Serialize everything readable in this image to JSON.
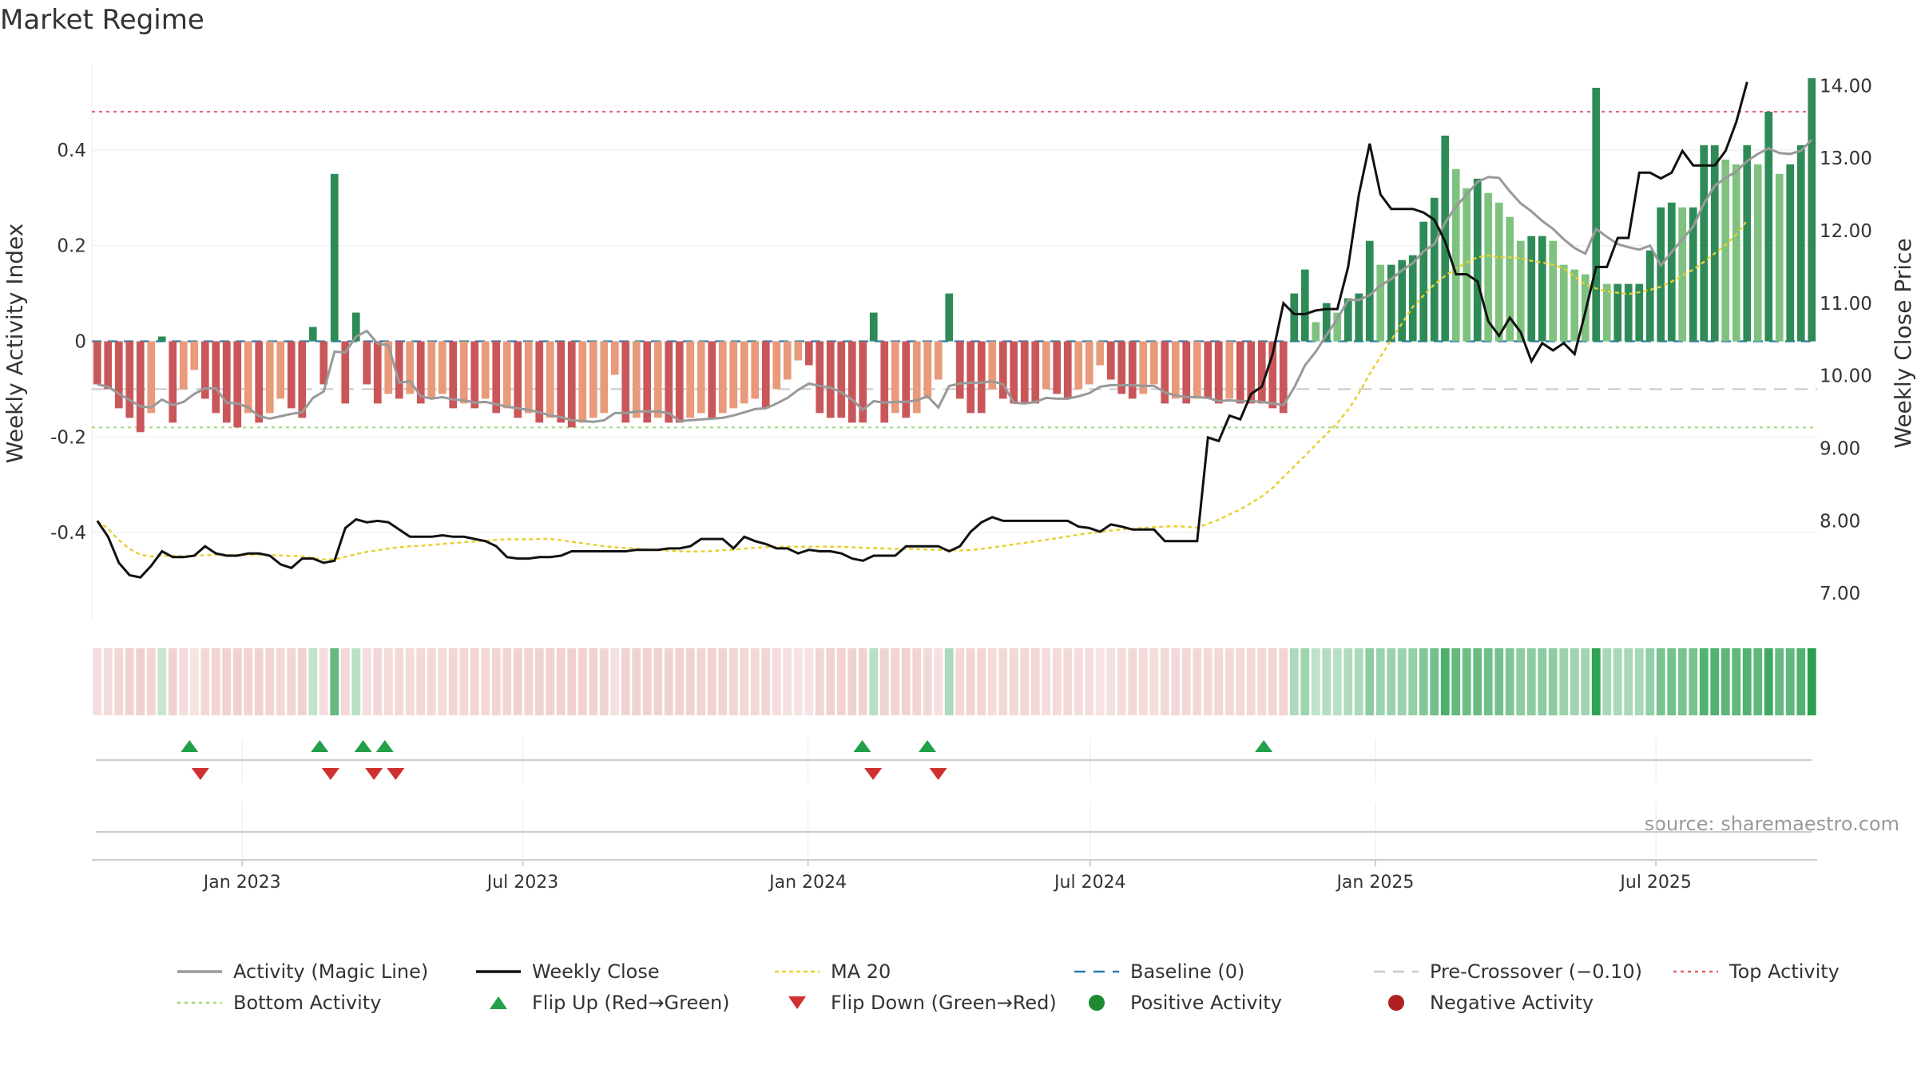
{
  "chart_data": {
    "type": "bar",
    "title": "Market Regime",
    "ylabel": "Weekly Activity Index",
    "y2label": "Weekly Close Price",
    "ylim": [
      -0.58,
      0.58
    ],
    "y2lim": [
      6.65,
      14.3
    ],
    "x_start": "2022-09-26",
    "x_end": "2025-10-13",
    "yticks": [
      {
        "v": 0.4,
        "label": "0.4"
      },
      {
        "v": 0.2,
        "label": "0.2"
      },
      {
        "v": 0,
        "label": "0"
      },
      {
        "v": -0.2,
        "label": "-0.2"
      },
      {
        "v": -0.4,
        "label": "-0.4"
      }
    ],
    "y2ticks": [
      {
        "v": 14,
        "label": "14.00"
      },
      {
        "v": 13,
        "label": "13.00"
      },
      {
        "v": 12,
        "label": "12.00"
      },
      {
        "v": 11,
        "label": "11.00"
      },
      {
        "v": 10,
        "label": "10.00"
      },
      {
        "v": 9,
        "label": "9.00"
      },
      {
        "v": 8,
        "label": "8.00"
      },
      {
        "v": 7,
        "label": "7.00"
      }
    ],
    "xticks": [
      {
        "date": "2023-01-01",
        "label": "Jan 2023"
      },
      {
        "date": "2023-07-01",
        "label": "Jul 2023"
      },
      {
        "date": "2024-01-01",
        "label": "Jan 2024"
      },
      {
        "date": "2024-07-01",
        "label": "Jul 2024"
      },
      {
        "date": "2025-01-01",
        "label": "Jan 2025"
      },
      {
        "date": "2025-07-01",
        "label": "Jul 2025"
      }
    ],
    "reference_lines": {
      "top": 0.48,
      "pre_crossover": -0.1,
      "bottom": -0.18
    },
    "activity": [
      -0.09,
      -0.1,
      -0.14,
      -0.16,
      -0.19,
      -0.15,
      0.01,
      -0.17,
      -0.1,
      -0.06,
      -0.12,
      -0.15,
      -0.17,
      -0.18,
      -0.15,
      -0.17,
      -0.15,
      -0.12,
      -0.14,
      -0.16,
      0.03,
      -0.09,
      0.35,
      -0.13,
      0.06,
      -0.09,
      -0.13,
      -0.11,
      -0.12,
      -0.11,
      -0.13,
      -0.12,
      -0.11,
      -0.14,
      -0.13,
      -0.14,
      -0.12,
      -0.15,
      -0.14,
      -0.16,
      -0.15,
      -0.17,
      -0.16,
      -0.17,
      -0.18,
      -0.17,
      -0.16,
      -0.15,
      -0.07,
      -0.17,
      -0.16,
      -0.17,
      -0.16,
      -0.17,
      -0.17,
      -0.16,
      -0.15,
      -0.16,
      -0.15,
      -0.14,
      -0.13,
      -0.12,
      -0.14,
      -0.1,
      -0.08,
      -0.04,
      -0.05,
      -0.15,
      -0.16,
      -0.16,
      -0.17,
      -0.17,
      0.06,
      -0.17,
      -0.15,
      -0.16,
      -0.15,
      -0.12,
      -0.08,
      0.1,
      -0.12,
      -0.15,
      -0.15,
      -0.1,
      -0.12,
      -0.13,
      -0.13,
      -0.13,
      -0.1,
      -0.11,
      -0.12,
      -0.1,
      -0.09,
      -0.05,
      -0.08,
      -0.11,
      -0.12,
      -0.11,
      -0.09,
      -0.13,
      -0.12,
      -0.13,
      -0.12,
      -0.12,
      -0.13,
      -0.12,
      -0.13,
      -0.13,
      -0.13,
      -0.14,
      -0.15,
      0.1,
      0.15,
      0.04,
      0.08,
      0.06,
      0.09,
      0.1,
      0.21,
      0.16,
      0.16,
      0.17,
      0.18,
      0.25,
      0.3,
      0.43,
      0.36,
      0.32,
      0.34,
      0.31,
      0.29,
      0.26,
      0.21,
      0.22,
      0.22,
      0.21,
      0.16,
      0.15,
      0.14,
      0.53,
      0.12,
      0.12,
      0.12,
      0.12,
      0.19,
      0.28,
      0.29,
      0.28,
      0.28,
      0.41,
      0.41,
      0.38,
      0.37,
      0.41,
      0.37,
      0.48,
      0.35,
      0.37,
      0.41,
      0.55
    ],
    "close": [
      8.0,
      7.78,
      7.42,
      7.25,
      7.22,
      7.38,
      7.58,
      7.5,
      7.5,
      7.52,
      7.65,
      7.55,
      7.52,
      7.52,
      7.55,
      7.55,
      7.52,
      7.4,
      7.35,
      7.48,
      7.48,
      7.42,
      7.45,
      7.9,
      8.02,
      7.98,
      8.0,
      7.98,
      7.88,
      7.78,
      7.78,
      7.78,
      7.8,
      7.78,
      7.78,
      7.75,
      7.72,
      7.65,
      7.5,
      7.48,
      7.48,
      7.5,
      7.5,
      7.52,
      7.58,
      7.58,
      7.58,
      7.58,
      7.58,
      7.58,
      7.6,
      7.6,
      7.6,
      7.62,
      7.62,
      7.65,
      7.75,
      7.75,
      7.75,
      7.62,
      7.78,
      7.72,
      7.68,
      7.62,
      7.62,
      7.55,
      7.6,
      7.58,
      7.58,
      7.55,
      7.48,
      7.45,
      7.52,
      7.52,
      7.52,
      7.65,
      7.65,
      7.65,
      7.65,
      7.58,
      7.65,
      7.85,
      7.98,
      8.05,
      8.0,
      8.0,
      8.0,
      8.0,
      8.0,
      8.0,
      8.0,
      7.92,
      7.9,
      7.85,
      7.95,
      7.92,
      7.88,
      7.88,
      7.88,
      7.72,
      7.72,
      7.72,
      7.72,
      9.15,
      9.1,
      9.45,
      9.4,
      9.75,
      9.85,
      10.3,
      11.0,
      10.85,
      10.85,
      10.9,
      10.92,
      10.92,
      11.5,
      12.5,
      13.2,
      12.5,
      12.3,
      12.3,
      12.3,
      12.25,
      12.15,
      11.85,
      11.4,
      11.4,
      11.3,
      10.75,
      10.55,
      10.8,
      10.6,
      10.2,
      10.45,
      10.35,
      10.45,
      10.3,
      10.88,
      11.5,
      11.5,
      11.9,
      11.9,
      12.8,
      12.8,
      12.72,
      12.8,
      13.1,
      12.9,
      12.9,
      12.9,
      13.1,
      13.5,
      14.05
    ],
    "flip_up_dates": [
      "2022-11-28",
      "2023-02-20",
      "2023-03-20",
      "2023-04-03",
      "2024-02-05",
      "2024-03-18",
      "2024-10-21"
    ],
    "flip_down_dates": [
      "2022-12-05",
      "2023-02-27",
      "2023-03-27",
      "2023-04-10",
      "2024-02-12",
      "2024-03-25"
    ],
    "source": "source: sharemaestro.com"
  },
  "legend": [
    {
      "key": "activity",
      "label": "Activity (Magic Line)"
    },
    {
      "key": "close",
      "label": "Weekly Close"
    },
    {
      "key": "ma20",
      "label": "MA 20"
    },
    {
      "key": "baseline",
      "label": "Baseline (0)"
    },
    {
      "key": "precross",
      "label": "Pre-Crossover (−0.10)"
    },
    {
      "key": "top",
      "label": "Top Activity"
    },
    {
      "key": "bottom",
      "label": "Bottom Activity"
    },
    {
      "key": "flipup",
      "label": "Flip Up (Red→Green)"
    },
    {
      "key": "flipdown",
      "label": "Flip Down (Green→Red)"
    },
    {
      "key": "positive",
      "label": "Positive Activity"
    },
    {
      "key": "negative",
      "label": "Negative Activity"
    }
  ],
  "colors": {
    "pos_strong": "#2e8b57",
    "pos_light": "#7fc27f",
    "neg_strong": "#c9575a",
    "neg_light": "#e89a7a",
    "close_line": "#111111",
    "magic_line": "#999999",
    "ma20": "#e8cf2c",
    "baseline": "#2a7ab0",
    "precross": "#c8c8c8",
    "top": "#e06070",
    "bottom": "#9ed67a",
    "flip_up": "#22a04a",
    "flip_down": "#d03030",
    "positive_dot": "#1f8a2f",
    "negative_dot": "#b02020"
  }
}
